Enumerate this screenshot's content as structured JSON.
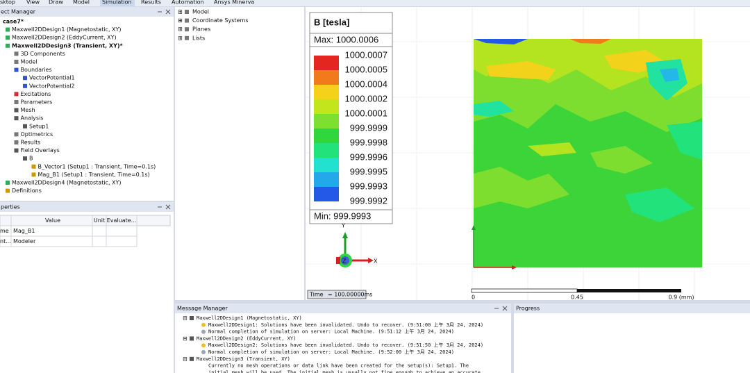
{
  "menu": [
    "sktop",
    "View",
    "Draw",
    "Model",
    "Simulation",
    "Results",
    "Automation",
    "Ansys Minerva"
  ],
  "project_manager": {
    "title": "ect Manager",
    "items": [
      "case7*",
      "Maxwell2DDesign1 (Magnetostatic, XY)",
      "Maxwell2DDesign2 (EddyCurrent, XY)",
      "Maxwell2DDesign3 (Transient, XY)*",
      "3D Components",
      "Model",
      "Boundaries",
      "VectorPotential1",
      "VectorPotential2",
      "Excitations",
      "Parameters",
      "Mesh",
      "Analysis",
      "Setup1",
      "Optimetrics",
      "Results",
      "Field Overlays",
      "B",
      "B_Vector1 (Setup1 : Transient, Time=0.1s)",
      "Mag_B1 (Setup1 : Transient, Time=0.1s)",
      "Maxwell2DDesign4 (Magnetostatic, XY)",
      "Definitions"
    ]
  },
  "properties": {
    "title": "perties",
    "headers": [
      "Value",
      "Unit",
      "Evaluate..."
    ],
    "rows": [
      [
        "me",
        "Mag_B1"
      ],
      [
        "nt...",
        "Modeler"
      ]
    ]
  },
  "model_tree": [
    "Model",
    "Coordinate Systems",
    "Planes",
    "Lists"
  ],
  "legend": {
    "title": "B [tesla]",
    "max": "Max: 1000.0006",
    "labels": [
      "1000.0007",
      "1000.0005",
      "1000.0004",
      "1000.0002",
      "1000.0001",
      "999.9999",
      "999.9998",
      "999.9996",
      "999.9995",
      "999.9993",
      "999.9992"
    ],
    "colors": [
      "#e3261f",
      "#f07a1c",
      "#f5d21a",
      "#c2e51c",
      "#7ee02e",
      "#2fd63c",
      "#22e27c",
      "#22e2cf",
      "#24a8ea",
      "#2458e6"
    ],
    "min": "Min:  999.9993"
  },
  "triad": {
    "y": "Y",
    "z": "Z",
    "x": "X"
  },
  "time": {
    "label": "Time",
    "value": "= 100.00000ms"
  },
  "scale_bar": [
    "0",
    "0.45",
    "0.9 (mm)"
  ],
  "message_manager": {
    "title": "Message Manager",
    "lines": [
      "Maxwell2DDesign1 (Magnetostatic, XY)",
      "Maxwell2DDesign1: Solutions have been invalidated. Undo to recover. (9:51:00 上午 3月 24, 2024)",
      "Normal completion of simulation on server: Local Machine. (9:51:12 上午 3月 24, 2024)",
      "Maxwell2DDesign2 (EddyCurrent, XY)",
      "Maxwell2DDesign2: Solutions have been invalidated. Undo to recover. (9:51:50 上午 3月 24, 2024)",
      "Normal completion of simulation on server: Local Machine. (9:52:00 上午 3月 24, 2024)",
      "Maxwell2DDesign3 (Transient, XY)",
      "Currently no mesh operations or data link have been created for the setup(s): Setup1.  The",
      "initial mesh will be used.  The initial mesh is usually not fine enough to achieve an accurate"
    ]
  },
  "progress": {
    "title": "Progress"
  }
}
